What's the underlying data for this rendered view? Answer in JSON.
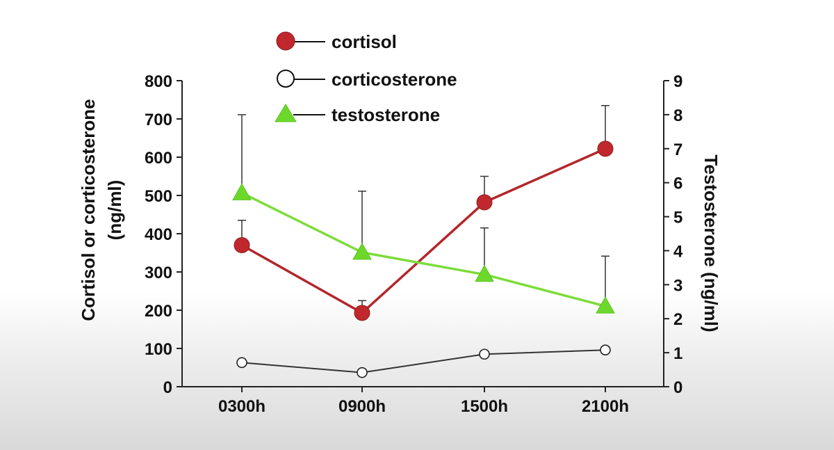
{
  "chart_data": {
    "type": "line",
    "categories": [
      "0300h",
      "0900h",
      "1500h",
      "2100h"
    ],
    "left_axis": {
      "title_line1": "Cortisol or corticosterone",
      "title_line2": "(ng/ml)",
      "ylim": [
        0,
        800
      ],
      "ticks": [
        "0",
        "100",
        "200",
        "300",
        "400",
        "500",
        "600",
        "700",
        "800"
      ]
    },
    "right_axis": {
      "title": "Testosterone (ng/ml)",
      "ylim": [
        0,
        9
      ],
      "ticks": [
        "0",
        "1",
        "2",
        "3",
        "4",
        "5",
        "6",
        "7",
        "8",
        "9"
      ]
    },
    "series": [
      {
        "name": "cortisol",
        "axis": "left",
        "marker": "circle-filled",
        "color": "#c0282d",
        "line_color": "#b3262b",
        "values": [
          370,
          193,
          482,
          622
        ],
        "error_upper": [
          435,
          225,
          550,
          735
        ]
      },
      {
        "name": "corticosterone",
        "axis": "left",
        "marker": "circle-open",
        "color": "#222222",
        "line_color": "#333333",
        "values": [
          63,
          37,
          85,
          96
        ],
        "error_upper": [
          null,
          null,
          null,
          null
        ]
      },
      {
        "name": "testosterone",
        "axis": "right",
        "marker": "triangle",
        "color": "#6cd92a",
        "line_color": "#7cdc3a",
        "values": [
          5.7,
          3.95,
          3.3,
          2.37
        ],
        "error_upper": [
          8.0,
          5.75,
          4.67,
          3.84
        ]
      }
    ],
    "legend": {
      "position": "top-center",
      "entries": [
        "cortisol",
        "corticosterone",
        "testosterone"
      ]
    }
  }
}
